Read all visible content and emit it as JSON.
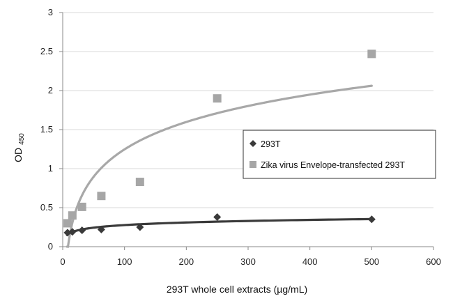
{
  "chart_data": {
    "type": "scatter",
    "title": "",
    "xlabel": "293T whole cell extracts (µg/mL)",
    "ylabel": "OD",
    "ylabel_sub": "450",
    "xlim": [
      0,
      600
    ],
    "ylim": [
      0,
      3
    ],
    "x_ticks": [
      "0",
      "100",
      "200",
      "300",
      "400",
      "500",
      "600"
    ],
    "y_ticks": [
      "0",
      "0.5",
      "1",
      "1.5",
      "2",
      "2.5",
      "3"
    ],
    "grid": "horizontal",
    "legend_placement": "center-right",
    "series": [
      {
        "name": "293T",
        "marker": "diamond",
        "color": "#3a3a3a",
        "points": [
          [
            7.8,
            0.18
          ],
          [
            15.6,
            0.19
          ],
          [
            31.25,
            0.21
          ],
          [
            62.5,
            0.22
          ],
          [
            125,
            0.25
          ],
          [
            250,
            0.38
          ],
          [
            500,
            0.35
          ]
        ],
        "trendline": "logarithmic",
        "trend_color": "#3a3a3a"
      },
      {
        "name": "Zika virus Envelope-transfected 293T",
        "marker": "square",
        "color": "#a6a6a6",
        "points": [
          [
            7.8,
            0.3
          ],
          [
            15.6,
            0.4
          ],
          [
            31.25,
            0.51
          ],
          [
            62.5,
            0.65
          ],
          [
            125,
            0.83
          ],
          [
            250,
            1.9
          ],
          [
            500,
            2.47
          ]
        ],
        "trendline": "logarithmic",
        "trend_color": "#a8a8a8"
      }
    ]
  }
}
